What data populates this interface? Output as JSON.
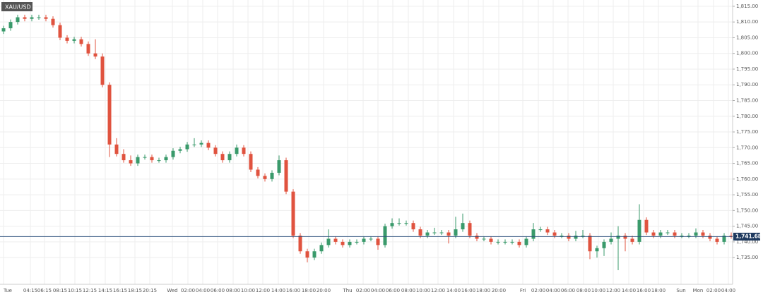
{
  "chart_data": {
    "type": "candlestick",
    "title": "XAU/USD",
    "ylim": [
      1726.5,
      1817
    ],
    "yticks": [
      {
        "value": 1735,
        "label": "1,735.00"
      },
      {
        "value": 1740,
        "label": "1,740.00"
      },
      {
        "value": 1745,
        "label": "1,745.00"
      },
      {
        "value": 1750,
        "label": "1,750.00"
      },
      {
        "value": 1755,
        "label": "1,755.00"
      },
      {
        "value": 1760,
        "label": "1,760.00"
      },
      {
        "value": 1765,
        "label": "1,765.00"
      },
      {
        "value": 1770,
        "label": "1,770.00"
      },
      {
        "value": 1775,
        "label": "1,775.00"
      },
      {
        "value": 1780,
        "label": "1,780.00"
      },
      {
        "value": 1785,
        "label": "1,785.00"
      },
      {
        "value": 1790,
        "label": "1,790.00"
      },
      {
        "value": 1795,
        "label": "1,795.00"
      },
      {
        "value": 1800,
        "label": "1,800.00"
      },
      {
        "value": 1805,
        "label": "1,805.00"
      },
      {
        "value": 1810,
        "label": "1,810.00"
      },
      {
        "value": 1815,
        "label": "1,815.00"
      }
    ],
    "x_labels": [
      "Tue",
      "04:15",
      "06:15",
      "08:15",
      "10:15",
      "12:15",
      "14:15",
      "16:15",
      "18:15",
      "20:15",
      "Wed",
      "02:00",
      "04:00",
      "06:00",
      "08:00",
      "10:00",
      "12:00",
      "14:00",
      "16:00",
      "18:00",
      "20:00",
      "Thu",
      "02:00",
      "04:00",
      "06:00",
      "08:00",
      "10:00",
      "12:00",
      "14:00",
      "16:00",
      "18:00",
      "20:00",
      "Fri",
      "02:00",
      "04:00",
      "06:00",
      "08:00",
      "10:00",
      "12:00",
      "14:00",
      "16:00",
      "18:00",
      "Sun",
      "Mon",
      "02:00",
      "04:00"
    ],
    "up_color": "#3a9a6b",
    "down_color": "#e0533f",
    "current_price": {
      "value": 1741.68,
      "label": "1,741.68"
    },
    "candles": [
      [
        1807,
        1808.8,
        1806.2,
        1808
      ],
      [
        1808,
        1810.8,
        1807.2,
        1810
      ],
      [
        1810,
        1812.3,
        1809.2,
        1811.5
      ],
      [
        1811.5,
        1812.3,
        1810.2,
        1811
      ],
      [
        1811,
        1812.3,
        1810.2,
        1811.5
      ],
      [
        1811.5,
        1812.3,
        1810.7,
        1811.5
      ],
      [
        1811.5,
        1812.3,
        1810.2,
        1811
      ],
      [
        1811,
        1811.8,
        1808.2,
        1809
      ],
      [
        1809,
        1809.8,
        1804.2,
        1805
      ],
      [
        1805,
        1805.8,
        1803.2,
        1804
      ],
      [
        1804,
        1805.3,
        1803.2,
        1804.5
      ],
      [
        1804.5,
        1805.3,
        1802.2,
        1803
      ],
      [
        1803,
        1803.8,
        1799.2,
        1800
      ],
      [
        1800,
        1804.5,
        1798.2,
        1799
      ],
      [
        1799,
        1800,
        1789.2,
        1790
      ],
      [
        1790,
        1790.8,
        1767,
        1771
      ],
      [
        1771,
        1773,
        1767.2,
        1768
      ],
      [
        1768,
        1769.5,
        1765.2,
        1766
      ],
      [
        1766,
        1767.5,
        1764.2,
        1765
      ],
      [
        1765,
        1767.8,
        1764.2,
        1767
      ],
      [
        1767,
        1767.8,
        1766.2,
        1767
      ],
      [
        1767,
        1767.8,
        1765.2,
        1766
      ],
      [
        1766,
        1766.8,
        1765.2,
        1766
      ],
      [
        1766,
        1767.8,
        1765.2,
        1767
      ],
      [
        1767,
        1769.8,
        1766.2,
        1769
      ],
      [
        1769,
        1770.3,
        1768.2,
        1769.5
      ],
      [
        1769.5,
        1771.8,
        1768.7,
        1771
      ],
      [
        1771,
        1773,
        1770.2,
        1771
      ],
      [
        1771,
        1772.3,
        1770.2,
        1771.5
      ],
      [
        1771.5,
        1772.3,
        1769.2,
        1770
      ],
      [
        1770,
        1770.8,
        1767.2,
        1768
      ],
      [
        1768,
        1768.8,
        1765.2,
        1766
      ],
      [
        1766,
        1768.8,
        1765.2,
        1768
      ],
      [
        1768,
        1771,
        1767.2,
        1770
      ],
      [
        1770,
        1770.8,
        1767.2,
        1768
      ],
      [
        1768,
        1768.8,
        1762.2,
        1763
      ],
      [
        1763,
        1763.8,
        1760.2,
        1761
      ],
      [
        1761,
        1761.8,
        1759.2,
        1760
      ],
      [
        1760,
        1762.8,
        1759.2,
        1762
      ],
      [
        1762,
        1767.5,
        1761.2,
        1766
      ],
      [
        1766,
        1766.8,
        1755.2,
        1756
      ],
      [
        1756,
        1756.8,
        1741.2,
        1742
      ],
      [
        1742,
        1742.8,
        1736.2,
        1737
      ],
      [
        1737,
        1737.8,
        1733.5,
        1735
      ],
      [
        1735,
        1737.8,
        1734.2,
        1737
      ],
      [
        1737,
        1739.8,
        1736.2,
        1739
      ],
      [
        1739,
        1744,
        1738.2,
        1741
      ],
      [
        1741,
        1741.8,
        1739.2,
        1740
      ],
      [
        1740,
        1740.8,
        1738.2,
        1739
      ],
      [
        1739,
        1740.8,
        1738.2,
        1740
      ],
      [
        1740,
        1740.8,
        1739.2,
        1740
      ],
      [
        1740,
        1741.8,
        1739.2,
        1741
      ],
      [
        1741,
        1741.8,
        1740.2,
        1741
      ],
      [
        1741,
        1741.8,
        1737.5,
        1739
      ],
      [
        1739,
        1745.8,
        1738.2,
        1745
      ],
      [
        1745,
        1747.5,
        1744.2,
        1746
      ],
      [
        1746,
        1747.5,
        1745.2,
        1746
      ],
      [
        1746,
        1746.8,
        1745.2,
        1746
      ],
      [
        1746,
        1746.8,
        1743.2,
        1744
      ],
      [
        1744,
        1744.8,
        1741.2,
        1742
      ],
      [
        1742,
        1743.8,
        1741.2,
        1743
      ],
      [
        1743,
        1744.5,
        1742.2,
        1743
      ],
      [
        1743,
        1743.8,
        1742.2,
        1743
      ],
      [
        1743,
        1743.8,
        1739.5,
        1742
      ],
      [
        1742,
        1748,
        1741.2,
        1744
      ],
      [
        1744,
        1749,
        1743.2,
        1746
      ],
      [
        1746,
        1746.8,
        1741.2,
        1742
      ],
      [
        1742,
        1742.8,
        1740.2,
        1741
      ],
      [
        1741,
        1741.8,
        1740.2,
        1741
      ],
      [
        1741,
        1741.8,
        1739.2,
        1740
      ],
      [
        1740,
        1740.8,
        1739.2,
        1740
      ],
      [
        1740,
        1740.8,
        1739.2,
        1740
      ],
      [
        1740,
        1740.8,
        1739.2,
        1740
      ],
      [
        1740,
        1740.8,
        1738.2,
        1739
      ],
      [
        1739,
        1741.8,
        1738.2,
        1741
      ],
      [
        1741,
        1746,
        1740.2,
        1744
      ],
      [
        1744,
        1744.8,
        1743.2,
        1744
      ],
      [
        1744,
        1744.8,
        1742.2,
        1743
      ],
      [
        1743,
        1743.8,
        1741.2,
        1742
      ],
      [
        1742,
        1742.8,
        1741.2,
        1742
      ],
      [
        1742,
        1742.8,
        1740.2,
        1741
      ],
      [
        1741,
        1743.5,
        1740.2,
        1742
      ],
      [
        1742,
        1743.8,
        1741.2,
        1742
      ],
      [
        1742,
        1742.8,
        1734.5,
        1737
      ],
      [
        1737,
        1738.8,
        1735,
        1738
      ],
      [
        1738,
        1740.8,
        1735.5,
        1740
      ],
      [
        1740,
        1743,
        1739.2,
        1741
      ],
      [
        1741,
        1745,
        1731,
        1742
      ],
      [
        1742,
        1742.8,
        1737,
        1741
      ],
      [
        1741,
        1742,
        1739.2,
        1740
      ],
      [
        1740,
        1752,
        1739.2,
        1747
      ],
      [
        1747,
        1747.8,
        1742.2,
        1743
      ],
      [
        1743,
        1743.8,
        1741.2,
        1742
      ],
      [
        1742,
        1743.8,
        1741.2,
        1743
      ],
      [
        1743,
        1743.8,
        1742.2,
        1743
      ],
      [
        1743,
        1743.8,
        1741.2,
        1742
      ],
      [
        1742,
        1742.8,
        1741.2,
        1742
      ],
      [
        1742,
        1742.8,
        1741.2,
        1742
      ],
      [
        1742,
        1744.3,
        1741.2,
        1743
      ],
      [
        1743,
        1743.8,
        1741.2,
        1742
      ],
      [
        1742,
        1742.8,
        1740.2,
        1741
      ],
      [
        1741,
        1741.8,
        1739.2,
        1740
      ],
      [
        1740,
        1742.8,
        1739.2,
        1742
      ],
      [
        1742,
        1743,
        1741,
        1741.68
      ]
    ]
  }
}
